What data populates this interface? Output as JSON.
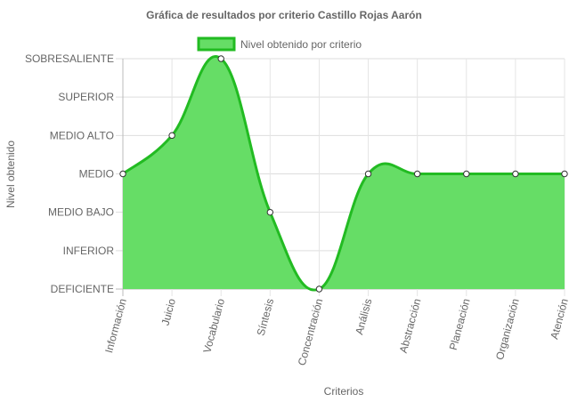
{
  "colors": {
    "fill": "#66dd66",
    "stroke": "#22bb22",
    "grid": "#e5e5e5",
    "axis": "#bbbbbb",
    "text": "#666666"
  },
  "chart_data": {
    "type": "area",
    "title": "Gráfica de resultados por criterio Castillo Rojas Aarón",
    "xlabel": "Criterios",
    "ylabel": "Nivel obtenido",
    "legend_position": "top",
    "grid": true,
    "levels": [
      "DEFICIENTE",
      "INFERIOR",
      "MEDIO BAJO",
      "MEDIO",
      "MEDIO ALTO",
      "SUPERIOR",
      "SOBRESALIENTE"
    ],
    "categories": [
      "Información",
      "Juicio",
      "Vocabulario",
      "Síntesis",
      "Concentración",
      "Análisis",
      "Abstracción",
      "Planeación",
      "Organización",
      "Atención"
    ],
    "series": [
      {
        "name": "Nivel obtenido por criterio",
        "values": [
          "MEDIO",
          "MEDIO ALTO",
          "SOBRESALIENTE",
          "MEDIO BAJO",
          "DEFICIENTE",
          "MEDIO",
          "MEDIO",
          "MEDIO",
          "MEDIO",
          "MEDIO"
        ]
      }
    ]
  }
}
